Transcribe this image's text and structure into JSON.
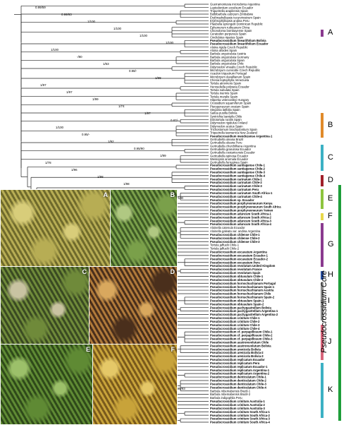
{
  "taxa_top": [
    "Guerramontesia microdonta Argentina",
    "Leptodontium excelsum Ecuador",
    "Triquetrella arapilensis Spain",
    "Bulbibarbula eubryum Zimbabwe",
    "Erythrophyllopsis recurvirostrum Spain",
    "Erythrophyllopsis andina Peru",
    "Plaubelia sprengelii Dominican Republic",
    "Ephemerum rutheanum China",
    "Chionoloma bombayense Spain",
    "Ceratodon purpureus Spain",
    "Cinclidotus riparius Spain",
    "Pseudocrossidium lineariifolium Bolivia",
    "Pseudocrossidium lineariifolium Ecuador",
    "Aloina rigida Czech Republic",
    "Aloina aloides Spain",
    "Barbula unguiculata Austria",
    "Barbula unguiculata Germany",
    "Barbula unguiculata Spain",
    "Barbula unguiculata Chile",
    "Didymodon vinealis Czech Republic",
    "Microbryum curvicolle Czech Republic",
    "Acaulon triquetrum Portugal",
    "Microbryum davallianum Spain",
    "Chenia leptophylla Venezuela",
    "Tortula atrovirens Spain",
    "Hennediella polyseta Ecuador",
    "Tortula subulata Spain",
    "Tortula inermis Spain",
    "Tortula muralis Spain",
    "Hilpertia velenovskyi Hungary",
    "Crossidium squamiferum Spain",
    "Pterygoneurum ovatum Spain",
    "Stegonia latifolia Spain",
    "Saitoa pusilla Bolivia",
    "Syntrichia laevipila Chile",
    "Dolotortula ruralis Spain",
    "Didymodon rigidulus Finland",
    "Didymodon acutus Spain",
    "Trichostomum brachydontium Spain",
    "Triquetrella tasmanica New Zealand",
    "Pseudocrossidium mendozense Argentina-1",
    "Gertrudiella uleana Brazil",
    "Gertrudiella uleana Peru",
    "Gertrudiella churchilliana Argentina",
    "Gertrudiella granulosa Ecuador",
    "Gertrudiella costaricensis Ecuador",
    "Gertrudiella spinosa Ecuador",
    "Weisiopsis anomala Ecuador",
    "Gertrudiella ferruginea Spain"
  ],
  "taxa_core": [
    "Pseudocrossidium santiagense Chile-1",
    "Pseudocrossidium santiagense Chile-2",
    "Pseudocrossidium santiagense Chile-3",
    "Pseudocrossidium santiagense Chile-4",
    "Pseudocrossidium carinatum Chile-1",
    "Pseudocrossidium carinatum Chile-2",
    "Pseudocrossidium carinatum Chile-3",
    "Pseudocrossidium carinatum Peru",
    "Pseudocrossidium carinatum South Africa-1",
    "Pseudocrossidium carinatum Chile-4",
    "Pseudocrossidium sp. Ecuador",
    "Pseudocrossidium porphyreoneurum Kenya",
    "Pseudocrossidium porphyreoneurum South Africa",
    "Pseudocrossidium porphyreoneurum Yemen",
    "Pseudocrossidium aduncum South Africa-1",
    "Pseudocrossidium aduncum South Africa-2",
    "Pseudocrossidium aduncum South Africa-3",
    "Pseudocrossidium aduncum South Africa-4",
    "Aloinella catenula Ecuador",
    "Aloinella galeata var. andina Argentina",
    "Pseudocrossidium chilense Chile-1",
    "Pseudocrossidium chilense Chile-2",
    "Pseudocrossidium chilense Chile-3",
    "Tortula jaffuelii Chile-1",
    "Tortula jaffuelii Chile-2",
    "Pseudocrossidium excavatum Argentina",
    "Pseudocrossidium excavatum Ecuador-1",
    "Pseudocrossidium excavatum Ecuador-2",
    "Pseudocrossidium excavatum Peru",
    "Pseudocrossidium revolutum United Kingdom",
    "Pseudocrossidium revolutum France",
    "Pseudocrossidium revolutum Spain",
    "Pseudocrossidium obtusulum Chile-1",
    "Pseudocrossidium obtusulum Chile-2",
    "Pseudocrossidium hornschuchianum Portugal",
    "Pseudocrossidium hornschuchianum Spain-1",
    "Pseudocrossidium hornschuchianum Austria",
    "Pseudocrossidium hornschuchianum Chile",
    "Pseudocrossidium hornschuchianum Spain-2",
    "Pseudocrossidium obtusulum Spain-1",
    "Pseudocrossidium obtusulum Spain-2",
    "Pseudocrossidium pachygastrellum Bolivia",
    "Pseudocrossidium pachygastrellum Argentina-1",
    "Pseudocrossidium pachygastrellum Argentina-2",
    "Pseudocrossidium crinitum Chile-1",
    "Pseudocrossidium crinitum Chile-2",
    "Pseudocrossidium crinitum Chile-3",
    "Pseudocrossidium crinitum Chile-4",
    "Pseudocrossidium cf. perpapillosum Chile-1",
    "Pseudocrossidium cf. perpapillosum Chile-2",
    "Pseudocrossidium cf. perpapillosum Chile-3",
    "Pseudocrossidium austrorevolutum Chile",
    "Pseudocrossidium austrorevolutum Bolivia",
    "Pseudocrossidium arenicola Bolivia",
    "Pseudocrossidium arenicola Bolivia-2",
    "Pseudocrossidium arenicola Bolivia-3",
    "Pseudocrossidium replicatum Ecuador",
    "Pseudocrossidium replicatum Peru",
    "Pseudocrossidium replicatum Ecuador-1",
    "Pseudocrossidium replicatum Argentina-1",
    "Pseudocrossidium replicatum Argentina-2",
    "Pseudocrossidium denticulatum Chile-1",
    "Pseudocrossidium denticulatum Chile-2",
    "Pseudocrossidium denticulatum Chile-3",
    "Pseudocrossidium denticulatum Chile-4",
    "Barbula mbemabensis Brazil-1",
    "Barbula mbemabensis Brazil-2",
    "Barbula indigophila Peru",
    "Pseudocrossidium crinitum Australia-1",
    "Pseudocrossidium crinitum Australia-2",
    "Pseudocrossidium crinitum Australia-3",
    "Pseudocrossidium crinitum South Africa-1",
    "Pseudocrossidium crinitum South Africa-2",
    "Pseudocrossidium crinitum South Africa-3",
    "Pseudocrossidium crinitum South Africa-4"
  ],
  "support_labels": [
    "0.99/59",
    "0.99/93",
    "1/100",
    "1/100",
    "1/100",
    "1/100",
    "1/100",
    "-/80",
    "1/63",
    "0.98/-",
    "1/98",
    "1/97",
    "1/97",
    "1/99",
    "1/74",
    "1/97",
    "0.87/-",
    "1/100",
    "0.95/-",
    "1/92",
    "0.95/90",
    "1/99",
    "1/78",
    "1/96",
    "1/98",
    "1/98",
    "1/100",
    "1/100",
    "-/92",
    "1/97",
    "1/100",
    "1/100",
    "1/-",
    "0.99/-",
    "1/100",
    "1/84",
    "0.99/94",
    "1/100",
    "1/99",
    "1/98",
    "1/100",
    "1/97",
    "1/75",
    "1/93",
    "1/81",
    "1/100",
    "0.99/90",
    "0.99/74",
    "1/100",
    "1/99",
    "1/77",
    "1/93",
    "1/98",
    "1/98",
    "0.99/93",
    "1/100",
    "1/100",
    "1/-"
  ],
  "clades": [
    {
      "label": "A",
      "color": "#8a3a8f"
    },
    {
      "label": "B",
      "color": "#e08a2a"
    },
    {
      "label": "C",
      "color": "#3cb1c4"
    },
    {
      "label": "D",
      "color": "#a0202a"
    },
    {
      "label": "E",
      "color": "#8dc43f"
    },
    {
      "label": "F",
      "color": "#e8d84a"
    },
    {
      "label": "G",
      "color": "#8a3a8f"
    },
    {
      "label": "H",
      "color": "#2b4f9e"
    },
    {
      "label": "I",
      "color": "#8c8c8c"
    },
    {
      "label": "J",
      "color": "#d8647a"
    },
    {
      "label": "K",
      "color": "#3cb1c4"
    }
  ],
  "core_label": "Pseudocrossidium Core",
  "photos": [
    {
      "label": "A",
      "palette": [
        "#b7ad54",
        "#6f6a2c",
        "#d8cd7a"
      ]
    },
    {
      "label": "B",
      "palette": [
        "#7aa04a",
        "#3e5b26",
        "#b0c882"
      ]
    },
    {
      "label": "C",
      "palette": [
        "#6f8a3a",
        "#3a4a22",
        "#c9c3a2"
      ]
    },
    {
      "label": "D",
      "palette": [
        "#4a2f1c",
        "#b07a3a",
        "#d9a85e"
      ]
    },
    {
      "label": "E",
      "palette": [
        "#5f8a34",
        "#2f4a1a",
        "#9cc06a"
      ]
    },
    {
      "label": "F",
      "palette": [
        "#c8a33a",
        "#7a5a1c",
        "#e5c868"
      ]
    }
  ]
}
